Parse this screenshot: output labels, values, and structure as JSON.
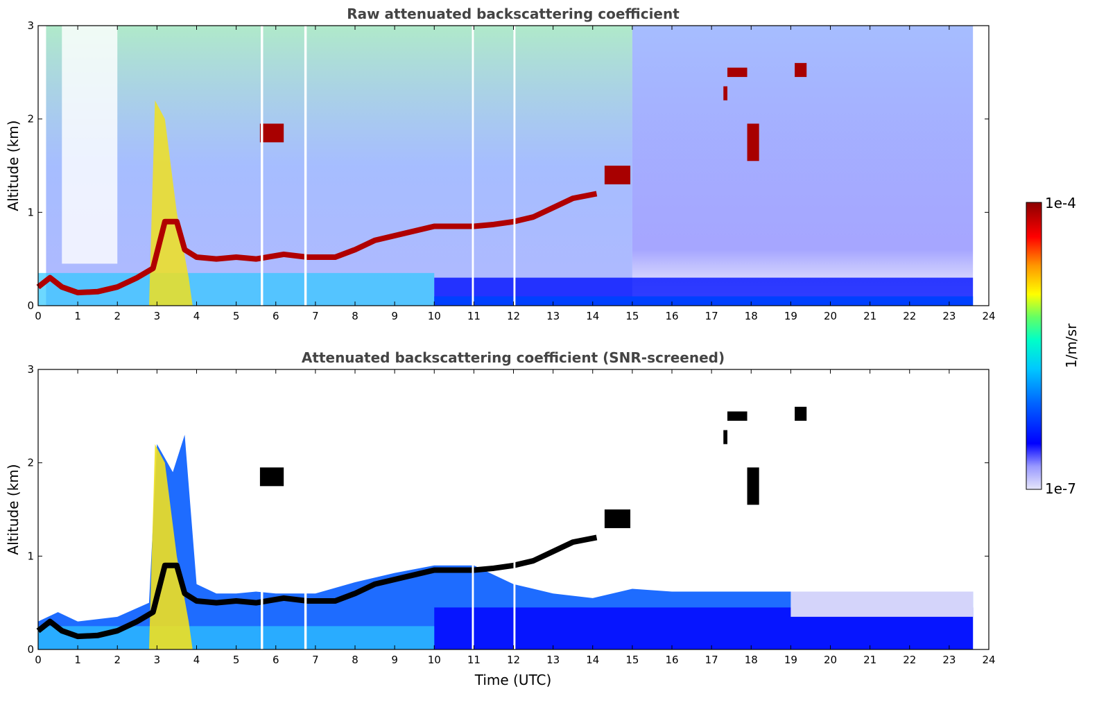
{
  "chart_data": [
    {
      "type": "heatmap",
      "title": "Raw attenuated backscattering coefficient",
      "xlabel": "",
      "ylabel": "Altitude (km)",
      "xlim": [
        0,
        24
      ],
      "ylim": [
        0,
        3
      ],
      "xticks": [
        "0",
        "1",
        "2",
        "3",
        "4",
        "5",
        "6",
        "7",
        "8",
        "9",
        "10",
        "11",
        "12",
        "13",
        "14",
        "15",
        "16",
        "17",
        "18",
        "19",
        "20",
        "21",
        "22",
        "23",
        "24"
      ],
      "yticks": [
        "0",
        "1",
        "2",
        "3"
      ],
      "data_end_time": 23.6,
      "boundary_layer": [
        [
          0,
          0.2
        ],
        [
          0.3,
          0.3
        ],
        [
          0.6,
          0.2
        ],
        [
          1,
          0.14
        ],
        [
          1.5,
          0.15
        ],
        [
          2,
          0.2
        ],
        [
          2.5,
          0.3
        ],
        [
          2.9,
          0.4
        ],
        [
          3.2,
          0.9
        ],
        [
          3.5,
          0.9
        ],
        [
          3.7,
          0.6
        ],
        [
          4,
          0.52
        ],
        [
          4.5,
          0.5
        ],
        [
          5,
          0.52
        ],
        [
          5.5,
          0.5
        ],
        [
          6.2,
          0.55
        ],
        [
          6.8,
          0.52
        ],
        [
          7.5,
          0.52
        ],
        [
          8,
          0.6
        ],
        [
          8.5,
          0.7
        ],
        [
          9,
          0.75
        ],
        [
          9.5,
          0.8
        ],
        [
          10,
          0.85
        ],
        [
          10.5,
          0.85
        ],
        [
          11,
          0.85
        ],
        [
          11.5,
          0.87
        ],
        [
          12,
          0.9
        ],
        [
          12.5,
          0.95
        ],
        [
          13,
          1.05
        ],
        [
          13.5,
          1.15
        ],
        [
          14.1,
          1.2
        ]
      ],
      "cloud_features": [
        {
          "t": [
            5.6,
            6.2
          ],
          "alt": [
            1.75,
            1.95
          ]
        },
        {
          "t": [
            14.3,
            14.95
          ],
          "alt": [
            1.3,
            1.5
          ]
        },
        {
          "t": [
            17.9,
            18.2
          ],
          "alt": [
            1.55,
            1.95
          ]
        },
        {
          "t": [
            17.3,
            17.4
          ],
          "alt": [
            2.2,
            2.35
          ]
        },
        {
          "t": [
            17.4,
            17.9
          ],
          "alt": [
            2.45,
            2.55
          ]
        },
        {
          "t": [
            19.1,
            19.4
          ],
          "alt": [
            2.45,
            2.6
          ]
        }
      ],
      "data_gaps": [
        5.62,
        5.68,
        6.72,
        6.78,
        10.95,
        11.0,
        12.0,
        12.05
      ]
    },
    {
      "type": "heatmap",
      "title": "Attenuated backscattering coefficient (SNR-screened)",
      "xlabel": "Time (UTC)",
      "ylabel": "Altitude (km)",
      "xlim": [
        0,
        24
      ],
      "ylim": [
        0,
        3
      ],
      "xticks": [
        "0",
        "1",
        "2",
        "3",
        "4",
        "5",
        "6",
        "7",
        "8",
        "9",
        "10",
        "11",
        "12",
        "13",
        "14",
        "15",
        "16",
        "17",
        "18",
        "19",
        "20",
        "21",
        "22",
        "23",
        "24"
      ],
      "yticks": [
        "0",
        "1",
        "2",
        "3"
      ],
      "data_end_time": 23.6,
      "screened_top": [
        [
          0,
          0.3
        ],
        [
          0.5,
          0.4
        ],
        [
          1,
          0.3
        ],
        [
          2,
          0.35
        ],
        [
          2.8,
          0.5
        ],
        [
          3,
          2.2
        ],
        [
          3.4,
          1.9
        ],
        [
          3.7,
          2.3
        ],
        [
          4,
          0.7
        ],
        [
          4.5,
          0.6
        ],
        [
          5,
          0.6
        ],
        [
          5.5,
          0.62
        ],
        [
          6,
          0.6
        ],
        [
          6.5,
          0.6
        ],
        [
          7,
          0.6
        ],
        [
          8,
          0.72
        ],
        [
          9,
          0.82
        ],
        [
          10,
          0.9
        ],
        [
          11,
          0.9
        ],
        [
          12,
          0.7
        ],
        [
          13,
          0.6
        ],
        [
          14,
          0.55
        ],
        [
          15,
          0.65
        ],
        [
          16,
          0.62
        ],
        [
          17,
          0.62
        ],
        [
          18,
          0.62
        ],
        [
          19,
          0.62
        ],
        [
          20,
          0.62
        ],
        [
          21,
          0.62
        ],
        [
          22,
          0.62
        ],
        [
          23.6,
          0.62
        ]
      ]
    }
  ],
  "colorbar": {
    "label": "1/m/sr",
    "max_label": "1e-4",
    "min_label": "1e-7",
    "colors": [
      "#e6e6fa",
      "#0000ff",
      "#0064ff",
      "#00c8ff",
      "#00ffc8",
      "#c8ff00",
      "#ffff00",
      "#ff9600",
      "#ff0000",
      "#8b0000"
    ]
  }
}
